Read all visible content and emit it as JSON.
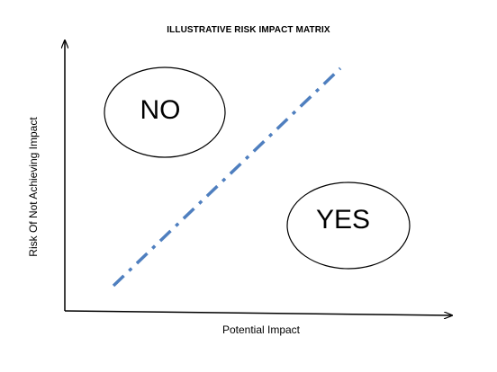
{
  "title": "ILLUSTRATIVE RISK IMPACT MATRIX",
  "axes": {
    "x_label": "Potential Impact",
    "y_label": "Risk Of Not Achieving Impact"
  },
  "regions": {
    "no_label": "NO",
    "yes_label": "YES"
  },
  "colors": {
    "divider_line": "#4f7fbf",
    "axis": "#000000",
    "ellipse_stroke": "#000000"
  }
}
